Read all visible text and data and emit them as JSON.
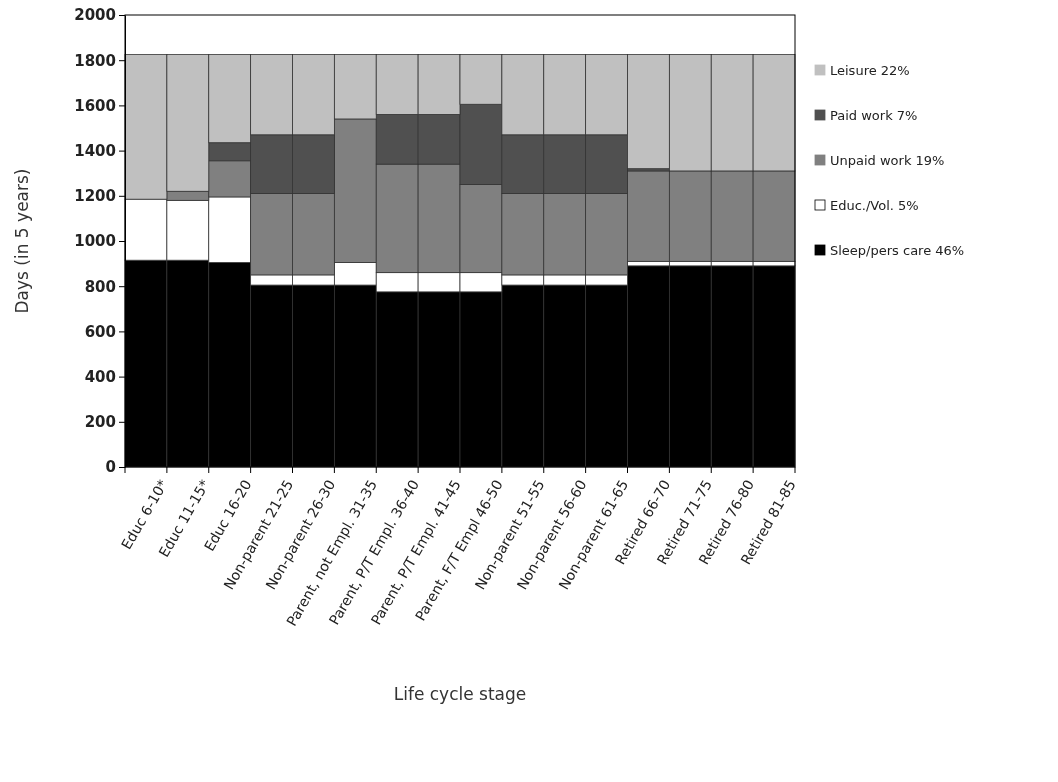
{
  "chart_data": {
    "type": "bar",
    "stacked": true,
    "xlabel": "Life cycle stage",
    "ylabel": "Days (in 5 years)",
    "categories": [
      "Educ 6-10*",
      "Educ 11-15*",
      "Educ 16-20",
      "Non-parent 21-25",
      "Non-parent 26-30",
      "Parent, not Empl. 31-35",
      "Parent, P/T Empl. 36-40",
      "Parent, P/T Empl. 41-45",
      "Parent, F/T Empl 46-50",
      "Non-parent 51-55",
      "Non-parent 56-60",
      "Non-parent 61-65",
      "Retired 66-70",
      "Retired 71-75",
      "Retired 76-80",
      "Retired 81-85"
    ],
    "series": [
      {
        "name": "Sleep/pers care 46%",
        "color": "#000000",
        "values": [
          915,
          915,
          905,
          805,
          805,
          805,
          775,
          775,
          775,
          805,
          805,
          805,
          890,
          890,
          890,
          890
        ]
      },
      {
        "name": "Educ./Vol. 5%",
        "color": "#ffffff",
        "values": [
          270,
          265,
          290,
          45,
          45,
          100,
          85,
          85,
          85,
          45,
          45,
          45,
          20,
          20,
          20,
          20
        ]
      },
      {
        "name": "Unpaid work 19%",
        "color": "#808080",
        "values": [
          0,
          40,
          160,
          360,
          360,
          635,
          480,
          480,
          390,
          360,
          360,
          360,
          400,
          400,
          400,
          400
        ]
      },
      {
        "name": "Paid work 7%",
        "color": "#505050",
        "values": [
          0,
          0,
          80,
          260,
          260,
          0,
          220,
          220,
          355,
          260,
          260,
          260,
          10,
          0,
          0,
          0
        ]
      },
      {
        "name": "Leisure 22%",
        "color": "#c0c0c0",
        "values": [
          640,
          605,
          390,
          355,
          355,
          285,
          265,
          265,
          220,
          355,
          355,
          355,
          505,
          515,
          515,
          515
        ]
      }
    ],
    "ylim": [
      0,
      2000
    ],
    "yticks": [
      0,
      200,
      400,
      600,
      800,
      1000,
      1200,
      1400,
      1600,
      1800,
      2000
    ],
    "legend": "right"
  }
}
